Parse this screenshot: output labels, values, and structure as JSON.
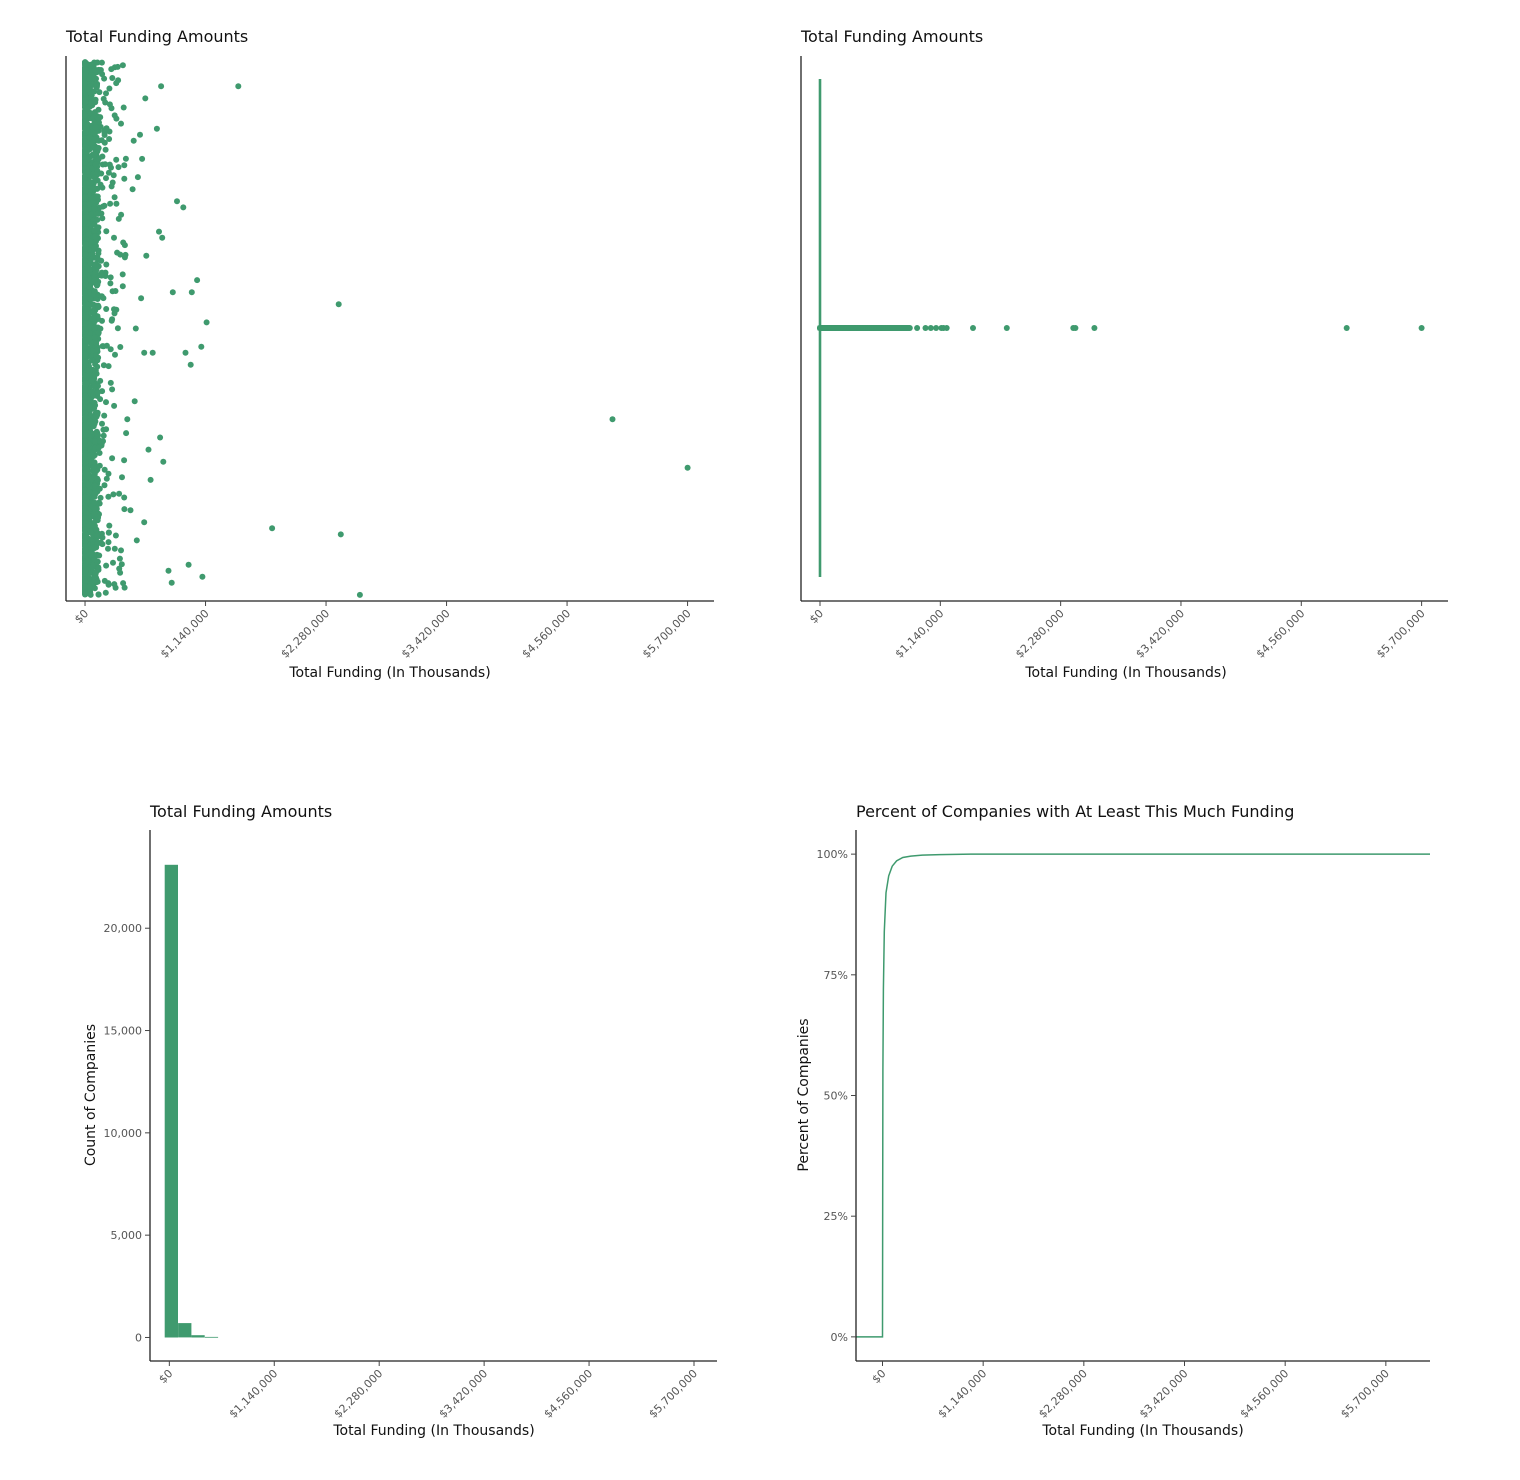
{
  "colors": {
    "accent": "#3f9a6e",
    "axis": "#222222",
    "text": "#111111",
    "tick_text": "#555555"
  },
  "chart_data": [
    {
      "id": "jitter",
      "type": "scatter",
      "title": "Total Funding Amounts",
      "xlabel": "Total Funding (In Thousands)",
      "ylabel": "",
      "xlim": [
        -180000,
        5950000
      ],
      "ylim": [
        -0.45,
        0.45
      ],
      "x_ticks": [
        0,
        1140000,
        2280000,
        3420000,
        4560000,
        5700000
      ],
      "x_tick_labels": [
        "$0",
        "$1,140,000",
        "$2,280,000",
        "$3,420,000",
        "$4,560,000",
        "$5,700,000"
      ],
      "grid": false,
      "note_density": "about 23,000 companies in total; nearly all are packed between $0 and about $100,000",
      "points": [
        {
          "x": 1450000,
          "y": 0.4
        },
        {
          "x": 2400000,
          "y": 0.04
        },
        {
          "x": 4990000,
          "y": -0.15
        },
        {
          "x": 5700000,
          "y": -0.23
        },
        {
          "x": 1770000,
          "y": -0.33
        },
        {
          "x": 2420000,
          "y": -0.34
        },
        {
          "x": 2600000,
          "y": -0.44
        },
        {
          "x": 720000,
          "y": 0.4
        },
        {
          "x": 570000,
          "y": 0.38
        },
        {
          "x": 680000,
          "y": 0.33
        },
        {
          "x": 870000,
          "y": 0.21
        },
        {
          "x": 930000,
          "y": 0.2
        },
        {
          "x": 700000,
          "y": 0.16
        },
        {
          "x": 730000,
          "y": 0.15
        },
        {
          "x": 1060000,
          "y": 0.08
        },
        {
          "x": 830000,
          "y": 0.06
        },
        {
          "x": 1010000,
          "y": 0.06
        },
        {
          "x": 1150000,
          "y": 0.01
        },
        {
          "x": 1100000,
          "y": -0.03
        },
        {
          "x": 640000,
          "y": -0.04
        },
        {
          "x": 950000,
          "y": -0.04
        },
        {
          "x": 1000000,
          "y": -0.06
        },
        {
          "x": 710000,
          "y": -0.18
        },
        {
          "x": 740000,
          "y": -0.22
        },
        {
          "x": 620000,
          "y": -0.25
        },
        {
          "x": 560000,
          "y": -0.32
        },
        {
          "x": 980000,
          "y": -0.39
        },
        {
          "x": 1110000,
          "y": -0.41
        },
        {
          "x": 790000,
          "y": -0.4
        },
        {
          "x": 820000,
          "y": -0.42
        },
        {
          "x": 520000,
          "y": 0.32
        },
        {
          "x": 540000,
          "y": 0.28
        },
        {
          "x": 500000,
          "y": 0.25
        },
        {
          "x": 460000,
          "y": 0.31
        },
        {
          "x": 450000,
          "y": 0.23
        },
        {
          "x": 580000,
          "y": 0.12
        },
        {
          "x": 530000,
          "y": 0.05
        },
        {
          "x": 480000,
          "y": 0.0
        },
        {
          "x": 560000,
          "y": -0.04
        },
        {
          "x": 400000,
          "y": -0.15
        },
        {
          "x": 470000,
          "y": -0.12
        },
        {
          "x": 600000,
          "y": -0.2
        },
        {
          "x": 430000,
          "y": -0.3
        },
        {
          "x": 490000,
          "y": -0.35
        },
        {
          "x": 330000,
          "y": -0.38
        }
      ]
    },
    {
      "id": "strip",
      "type": "scatter",
      "title": "Total Funding Amounts",
      "xlabel": "Total Funding (In Thousands)",
      "ylabel": "",
      "xlim": [
        -180000,
        5950000
      ],
      "x_ticks": [
        0,
        1140000,
        2280000,
        3420000,
        4560000,
        5700000
      ],
      "x_tick_labels": [
        "$0",
        "$1,140,000",
        "$2,280,000",
        "$3,420,000",
        "$4,560,000",
        "$5,700,000"
      ],
      "grid": false,
      "note_density": "a dense line of points runs from $0 to about $850,000",
      "points_x": [
        920000,
        1000000,
        1050000,
        1100000,
        1150000,
        1170000,
        1200000,
        1450000,
        1770000,
        2400000,
        2420000,
        2600000,
        4990000,
        5700000
      ],
      "vline_x": 0
    },
    {
      "id": "histogram",
      "type": "bar",
      "title": "Total Funding Amounts",
      "xlabel": "Total Funding (In Thousands)",
      "ylabel": "Count of Companies",
      "xlim": [
        -210000,
        5950000
      ],
      "ylim": [
        -1150,
        24800
      ],
      "x_ticks": [
        0,
        1140000,
        2280000,
        3420000,
        4560000,
        5700000
      ],
      "x_tick_labels": [
        "$0",
        "$1,140,000",
        "$2,280,000",
        "$3,420,000",
        "$4,560,000",
        "$5,700,000"
      ],
      "y_ticks": [
        0,
        5000,
        10000,
        15000,
        20000
      ],
      "y_tick_labels": [
        "0",
        "5,000",
        "10,000",
        "15,000",
        "20,000"
      ],
      "grid": false,
      "bins": [
        {
          "x0": -50000,
          "x1": 95000,
          "count": 23100
        },
        {
          "x0": 95000,
          "x1": 240000,
          "count": 700
        },
        {
          "x0": 240000,
          "x1": 385000,
          "count": 110
        },
        {
          "x0": 385000,
          "x1": 530000,
          "count": 30
        }
      ]
    },
    {
      "id": "ecdf",
      "type": "line",
      "title": "Percent of Companies with At Least This Much Funding",
      "xlabel": "Total Funding (In Thousands)",
      "ylabel": "Percent of Companies",
      "xlim": [
        -300000,
        6200000
      ],
      "ylim": [
        -0.05,
        1.05
      ],
      "x_ticks": [
        0,
        1140000,
        2280000,
        3420000,
        4560000,
        5700000
      ],
      "x_tick_labels": [
        "$0",
        "$1,140,000",
        "$2,280,000",
        "$3,420,000",
        "$4,560,000",
        "$5,700,000"
      ],
      "y_ticks": [
        0,
        0.25,
        0.5,
        0.75,
        1.0
      ],
      "y_tick_labels": [
        "0%",
        "25%",
        "50%",
        "75%",
        "100%"
      ],
      "grid": false,
      "x": [
        -300000,
        0,
        2000,
        5000,
        10000,
        20000,
        40000,
        70000,
        110000,
        160000,
        230000,
        320000,
        450000,
        650000,
        1000000,
        6200000
      ],
      "y": [
        0,
        0,
        0.3,
        0.55,
        0.72,
        0.84,
        0.92,
        0.955,
        0.975,
        0.986,
        0.993,
        0.996,
        0.998,
        0.999,
        1.0,
        1.0
      ]
    }
  ]
}
